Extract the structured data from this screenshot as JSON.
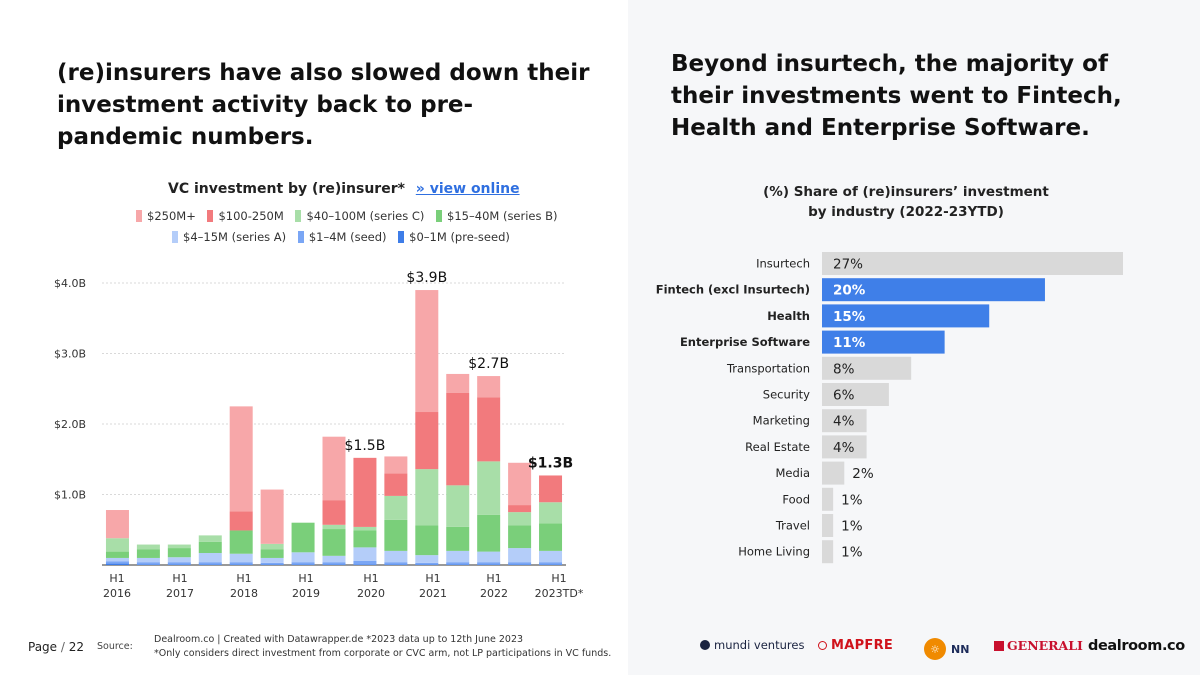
{
  "left_headline": "(re)insurers have also slowed down their investment activity back to pre-pandemic numbers.",
  "right_headline": "Beyond insurtech, the majority of their investments went to Fintech, Health and Enterprise Software.",
  "colors": {
    "s250": "#f7a7a9",
    "s100": "#f27a7d",
    "s40": "#a8dea8",
    "s15": "#7acf7a",
    "s4": "#b4cdf9",
    "s1": "#7aa6f5",
    "s0": "#3e7de8",
    "bar_highlight": "#3f7fe8",
    "bar_gray": "#d9d9d9"
  },
  "chart_data": [
    {
      "type": "bar",
      "stacked": true,
      "title": "VC investment by (re)insurer*",
      "title_link": "» view online",
      "y_ticks": [
        "$4.0B",
        "$3.0B",
        "$2.0B",
        "$1.0B"
      ],
      "ylim": [
        0,
        4.0
      ],
      "grid": true,
      "legend_position": "top",
      "legend": [
        {
          "key": "s250",
          "label": "$250M+"
        },
        {
          "key": "s100",
          "label": "$100-250M"
        },
        {
          "key": "s40",
          "label": "$40–100M (series C)"
        },
        {
          "key": "s15",
          "label": "$15–40M (series B)"
        },
        {
          "key": "s4",
          "label": "$4–15M (series A)"
        },
        {
          "key": "s1",
          "label": "$1–4M (seed)"
        },
        {
          "key": "s0",
          "label": "$0–1M (pre-seed)"
        }
      ],
      "x_labels": [
        {
          "line1": "H1",
          "line2": "2016"
        },
        {
          "line1": "H1",
          "line2": "2017"
        },
        {
          "line1": "H1",
          "line2": "2018"
        },
        {
          "line1": "H1",
          "line2": "2019"
        },
        {
          "line1": "H1",
          "line2": "2020"
        },
        {
          "line1": "H1",
          "line2": "2021"
        },
        {
          "line1": "H1",
          "line2": "2022"
        },
        {
          "line1": "H1",
          "line2": "2023TD*"
        }
      ],
      "bars": [
        {
          "stack": {
            "s0": 0.02,
            "s1": 0.03,
            "s4": 0.05,
            "s15": 0.09,
            "s40": 0.19,
            "s100": 0,
            "s250": 0.4
          }
        },
        {
          "stack": {
            "s0": 0.01,
            "s1": 0.03,
            "s4": 0.06,
            "s15": 0.12,
            "s40": 0.07,
            "s100": 0,
            "s250": 0
          }
        },
        {
          "stack": {
            "s0": 0.01,
            "s1": 0.03,
            "s4": 0.07,
            "s15": 0.13,
            "s40": 0.05,
            "s100": 0,
            "s250": 0
          }
        },
        {
          "stack": {
            "s0": 0.01,
            "s1": 0.03,
            "s4": 0.13,
            "s15": 0.16,
            "s40": 0.09,
            "s100": 0,
            "s250": 0
          }
        },
        {
          "stack": {
            "s0": 0.01,
            "s1": 0.03,
            "s4": 0.12,
            "s15": 0.33,
            "s40": 0,
            "s100": 0.27,
            "s250": 1.49
          }
        },
        {
          "stack": {
            "s0": 0.01,
            "s1": 0.02,
            "s4": 0.07,
            "s15": 0.12,
            "s40": 0.08,
            "s100": 0,
            "s250": 0.77
          }
        },
        {
          "stack": {
            "s0": 0.01,
            "s1": 0.03,
            "s4": 0.14,
            "s15": 0.42,
            "s40": 0,
            "s100": 0,
            "s250": 0
          }
        },
        {
          "stack": {
            "s0": 0.01,
            "s1": 0.03,
            "s4": 0.09,
            "s15": 0.38,
            "s40": 0.06,
            "s100": 0.35,
            "s250": 0.9
          }
        },
        {
          "stack": {
            "s0": 0.01,
            "s1": 0.05,
            "s4": 0.19,
            "s15": 0.24,
            "s40": 0.05,
            "s100": 0.98,
            "s250": 0
          },
          "label": "$1.5B"
        },
        {
          "stack": {
            "s0": 0.01,
            "s1": 0.03,
            "s4": 0.16,
            "s15": 0.44,
            "s40": 0.34,
            "s100": 0.32,
            "s250": 0.24
          }
        },
        {
          "stack": {
            "s0": 0.01,
            "s1": 0.02,
            "s4": 0.11,
            "s15": 0.42,
            "s40": 0.8,
            "s100": 0.81,
            "s250": 1.73
          },
          "label": "$3.9B"
        },
        {
          "stack": {
            "s0": 0.01,
            "s1": 0.03,
            "s4": 0.16,
            "s15": 0.34,
            "s40": 0.59,
            "s100": 1.31,
            "s250": 0.27
          }
        },
        {
          "stack": {
            "s0": 0.01,
            "s1": 0.03,
            "s4": 0.15,
            "s15": 0.52,
            "s40": 0.76,
            "s100": 0.91,
            "s250": 0.3
          },
          "label": "$2.7B"
        },
        {
          "stack": {
            "s0": 0.01,
            "s1": 0.03,
            "s4": 0.2,
            "s15": 0.32,
            "s40": 0.19,
            "s100": 0.1,
            "s250": 0.6
          }
        },
        {
          "stack": {
            "s0": 0.01,
            "s1": 0.03,
            "s4": 0.16,
            "s15": 0.39,
            "s40": 0.3,
            "s100": 0.38,
            "s250": 0
          },
          "label": "$1.3B",
          "label_bold": true
        }
      ]
    },
    {
      "type": "bar",
      "orientation": "horizontal",
      "title_line1": "(%) Share of (re)insurers’ investment",
      "title_line2": "by industry (2022-23YTD)",
      "xlim": [
        0,
        27
      ],
      "categories": [
        "Insurtech",
        "Fintech (excl Insurtech)",
        "Health",
        "Enterprise Software",
        "Transportation",
        "Security",
        "Marketing",
        "Real Estate",
        "Media",
        "Food",
        "Travel",
        "Home Living"
      ],
      "values": [
        27,
        20,
        15,
        11,
        8,
        6,
        4,
        4,
        2,
        1,
        1,
        1
      ],
      "value_labels": [
        "27%",
        "20%",
        "15%",
        "11%",
        "8%",
        "6%",
        "4%",
        "4%",
        "2%",
        "1%",
        "1%",
        "1%"
      ],
      "highlighted": [
        false,
        true,
        true,
        true,
        false,
        false,
        false,
        false,
        false,
        false,
        false,
        false
      ]
    }
  ],
  "footer": {
    "page_label": "Page",
    "page_sep": "/",
    "page_num": "22",
    "source_label": "Source:",
    "source_line1": "Dealroom.co | Created with Datawrapper.de  *2023 data up to 12th June 2023",
    "source_line2": "*Only considers direct investment from corporate or CVC arm, not LP participations in VC funds."
  },
  "logos": {
    "mundi": "mundi ventures",
    "mapfre": "MAPFRE",
    "nn": "NN",
    "generali": "GENERALI",
    "dealroom": "dealroom.co"
  }
}
